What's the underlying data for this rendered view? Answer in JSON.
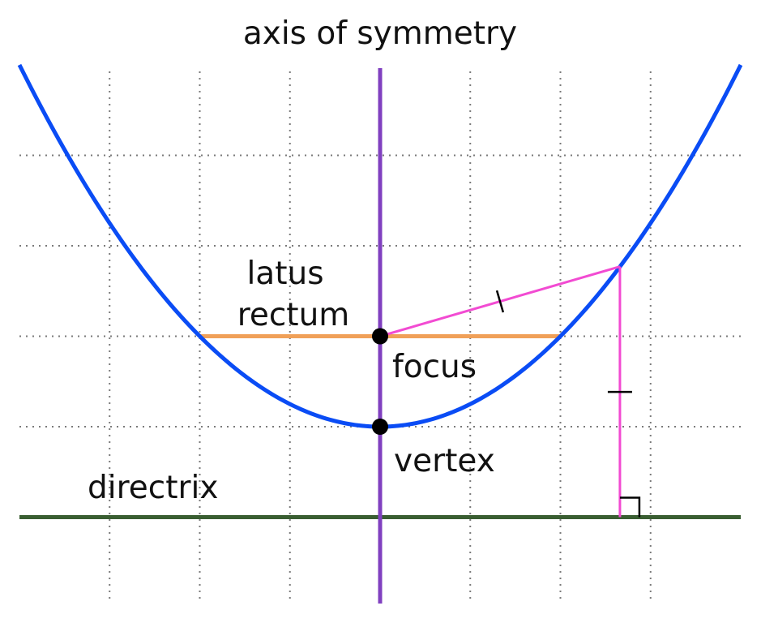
{
  "title": "axis of symmetry",
  "labels": {
    "latus_line1": "latus",
    "latus_line2": "rectum",
    "focus": "focus",
    "vertex": "vertex",
    "directrix": "directrix"
  },
  "colors": {
    "parabola": "#0a4cf5",
    "axis": "#8040c0",
    "latus_rectum": "#f0a058",
    "distance_segments": "#f24bd2",
    "directrix": "#3a5e32",
    "grid": "#7a7a7a",
    "points": "#000000"
  },
  "chart_data": {
    "type": "diagram",
    "curve": "y = x^2 / 4",
    "xlim": [
      -4,
      4
    ],
    "ylim": [
      -2,
      4
    ],
    "grid": true,
    "vertex": [
      0,
      0
    ],
    "focus": [
      0,
      1
    ],
    "directrix_y": -1,
    "latus_rectum": {
      "from": [
        -2,
        1
      ],
      "to": [
        2,
        1
      ]
    },
    "sample_point": [
      2.66,
      1.77
    ]
  }
}
